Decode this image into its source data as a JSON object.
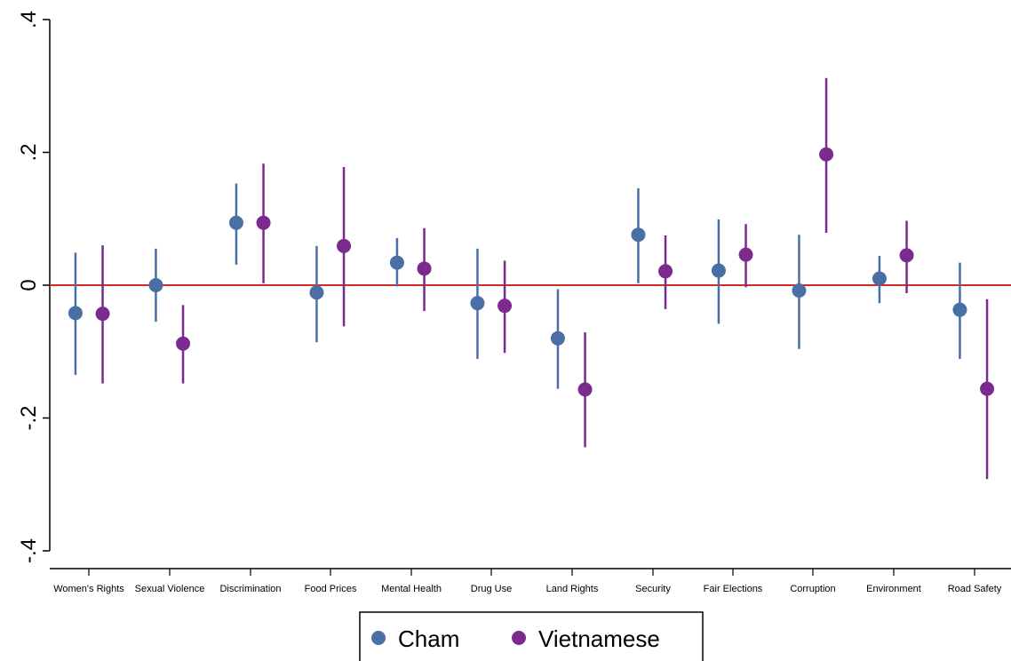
{
  "chart_data": {
    "type": "scatter",
    "subtype": "point estimates with confidence intervals",
    "ylim": [
      -0.4,
      0.4
    ],
    "yticks": [
      {
        "value": 0.4,
        "label": ".4"
      },
      {
        "value": 0.2,
        "label": ".2"
      },
      {
        "value": 0,
        "label": "0"
      },
      {
        "value": -0.2,
        "label": "-.2"
      },
      {
        "value": -0.4,
        "label": "-.4"
      }
    ],
    "reference_line": {
      "value": 0,
      "color": "#d62728"
    },
    "categories": [
      "Women's Rights",
      "Sexual Violence",
      "Discrimination",
      "Food Prices",
      "Mental Health",
      "Drug Use",
      "Land Rights",
      "Security",
      "Fair Elections",
      "Corruption",
      "Environment",
      "Road Safety"
    ],
    "series": [
      {
        "name": "Cham",
        "color": "#4a6fa5",
        "values": [
          -0.042,
          0.0,
          0.094,
          -0.011,
          0.034,
          -0.027,
          -0.08,
          0.076,
          0.022,
          -0.008,
          0.01,
          -0.037
        ],
        "ci_low": [
          -0.135,
          -0.055,
          0.031,
          -0.086,
          -0.002,
          -0.111,
          -0.156,
          0.003,
          -0.058,
          -0.096,
          -0.027,
          -0.111
        ],
        "ci_high": [
          0.049,
          0.055,
          0.153,
          0.059,
          0.071,
          0.055,
          -0.006,
          0.146,
          0.099,
          0.076,
          0.044,
          0.034
        ]
      },
      {
        "name": "Vietnamese",
        "color": "#7b2a8e",
        "values": [
          -0.043,
          -0.088,
          0.094,
          0.059,
          0.025,
          -0.031,
          -0.157,
          0.021,
          0.046,
          0.197,
          0.045,
          -0.156
        ],
        "ci_low": [
          -0.148,
          -0.148,
          0.003,
          -0.062,
          -0.039,
          -0.102,
          -0.244,
          -0.036,
          -0.003,
          0.079,
          -0.012,
          -0.292
        ],
        "ci_high": [
          0.06,
          -0.03,
          0.183,
          0.178,
          0.086,
          0.037,
          -0.071,
          0.075,
          0.092,
          0.312,
          0.097,
          -0.021
        ]
      }
    ],
    "legend": {
      "position": "bottom-center",
      "items": [
        "Cham",
        "Vietnamese"
      ]
    },
    "grid": false
  }
}
